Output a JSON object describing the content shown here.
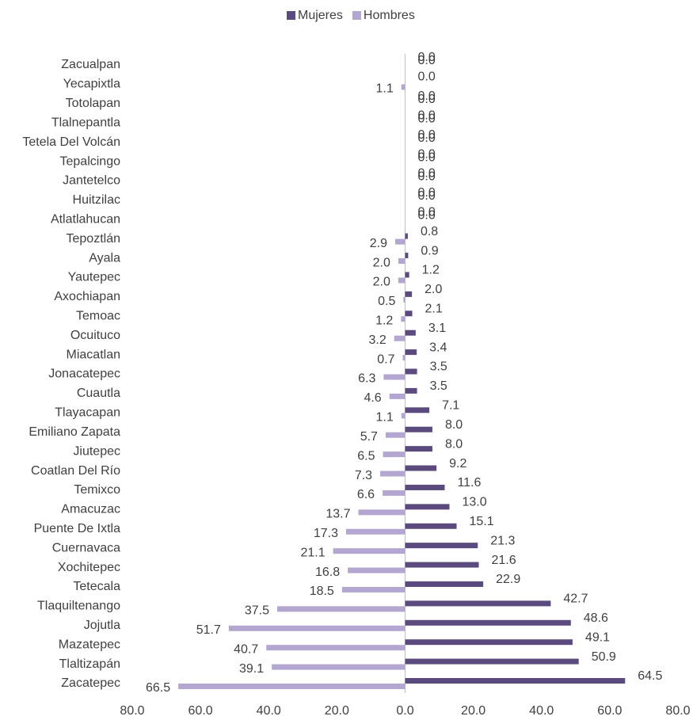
{
  "chart_data": {
    "type": "bar",
    "orientation": "horizontal",
    "categories": [
      "Zacualpan",
      "Yecapixtla",
      "Totolapan",
      "Tlalnepantla",
      "Tetela Del Volcán",
      "Tepalcingo",
      "Jantetelco",
      "Huitzilac",
      "Atlatlahucan",
      "Tepoztlán",
      "Ayala",
      "Yautepec",
      "Axochiapan",
      "Temoac",
      "Ocuituco",
      "Miacatlan",
      "Jonacatepec",
      "Cuautla",
      "Tlayacapan",
      "Emiliano Zapata",
      "Jiutepec",
      "Coatlan Del Río",
      "Temixco",
      "Amacuzac",
      "Puente De Ixtla",
      "Cuernavaca",
      "Xochitepec",
      "Tetecala",
      "Tlaquiltenango",
      "Jojutla",
      "Mazatepec",
      "Tlaltizapán",
      "Zacatepec"
    ],
    "series": [
      {
        "name": "Mujeres",
        "color": "#5b4a7e",
        "values": [
          0,
          0,
          0,
          0,
          0,
          0,
          0,
          0,
          0,
          0.8,
          0.9,
          1.2,
          2.0,
          2.1,
          3.1,
          3.4,
          3.5,
          3.5,
          7.1,
          8.0,
          8.0,
          9.2,
          11.6,
          13.0,
          15.1,
          21.3,
          21.6,
          22.9,
          42.7,
          48.6,
          49.1,
          50.9,
          64.5
        ],
        "value_labels": [
          "0.0",
          "0.0",
          "0.0",
          "0.0",
          "0.0",
          "0.0",
          "0.0",
          "0.0",
          "0.0",
          "0.8",
          "0.9",
          "1.2",
          "2.0",
          "2.1",
          "3.1",
          "3.4",
          "3.5",
          "3.5",
          "7.1",
          "8.0",
          "8.0",
          "9.2",
          "11.6",
          "13.0",
          "15.1",
          "21.3",
          "21.6",
          "22.9",
          "42.7",
          "48.6",
          "49.1",
          "50.9",
          "64.5"
        ]
      },
      {
        "name": "Hombres",
        "color": "#b3a6d1",
        "values": [
          0,
          -1.1,
          0,
          0,
          0,
          0,
          0,
          0,
          0,
          -2.9,
          -2.0,
          -2.0,
          -0.5,
          -1.2,
          -3.2,
          -0.7,
          -6.3,
          -4.6,
          -1.1,
          -5.7,
          -6.5,
          -7.3,
          -6.6,
          -13.7,
          -17.3,
          -21.1,
          -16.8,
          -18.5,
          -37.5,
          -51.7,
          -40.7,
          -39.1,
          -66.5
        ],
        "value_labels": [
          "0.0",
          "1.1",
          "0.0",
          "0.0",
          "0.0",
          "0.0",
          "0.0",
          "0.0",
          "0.0",
          "2.9",
          "2.0",
          "2.0",
          "0.5",
          "1.2",
          "3.2",
          "0.7",
          "6.3",
          "4.6",
          "1.1",
          "5.7",
          "6.5",
          "7.3",
          "6.6",
          "13.7",
          "17.3",
          "21.1",
          "16.8",
          "18.5",
          "37.5",
          "51.7",
          "40.7",
          "39.1",
          "66.5"
        ]
      }
    ],
    "xlim": [
      -80,
      80
    ],
    "xticks": [
      {
        "value": -80,
        "label": "80.0"
      },
      {
        "value": -60,
        "label": "60.0"
      },
      {
        "value": -40,
        "label": "40.0"
      },
      {
        "value": -20,
        "label": "20.0"
      },
      {
        "value": 0,
        "label": "0.0"
      },
      {
        "value": 20,
        "label": "20.0"
      },
      {
        "value": 40,
        "label": "40.0"
      },
      {
        "value": 60,
        "label": "60.0"
      },
      {
        "value": 80,
        "label": "80.0"
      }
    ],
    "legend": "top"
  }
}
